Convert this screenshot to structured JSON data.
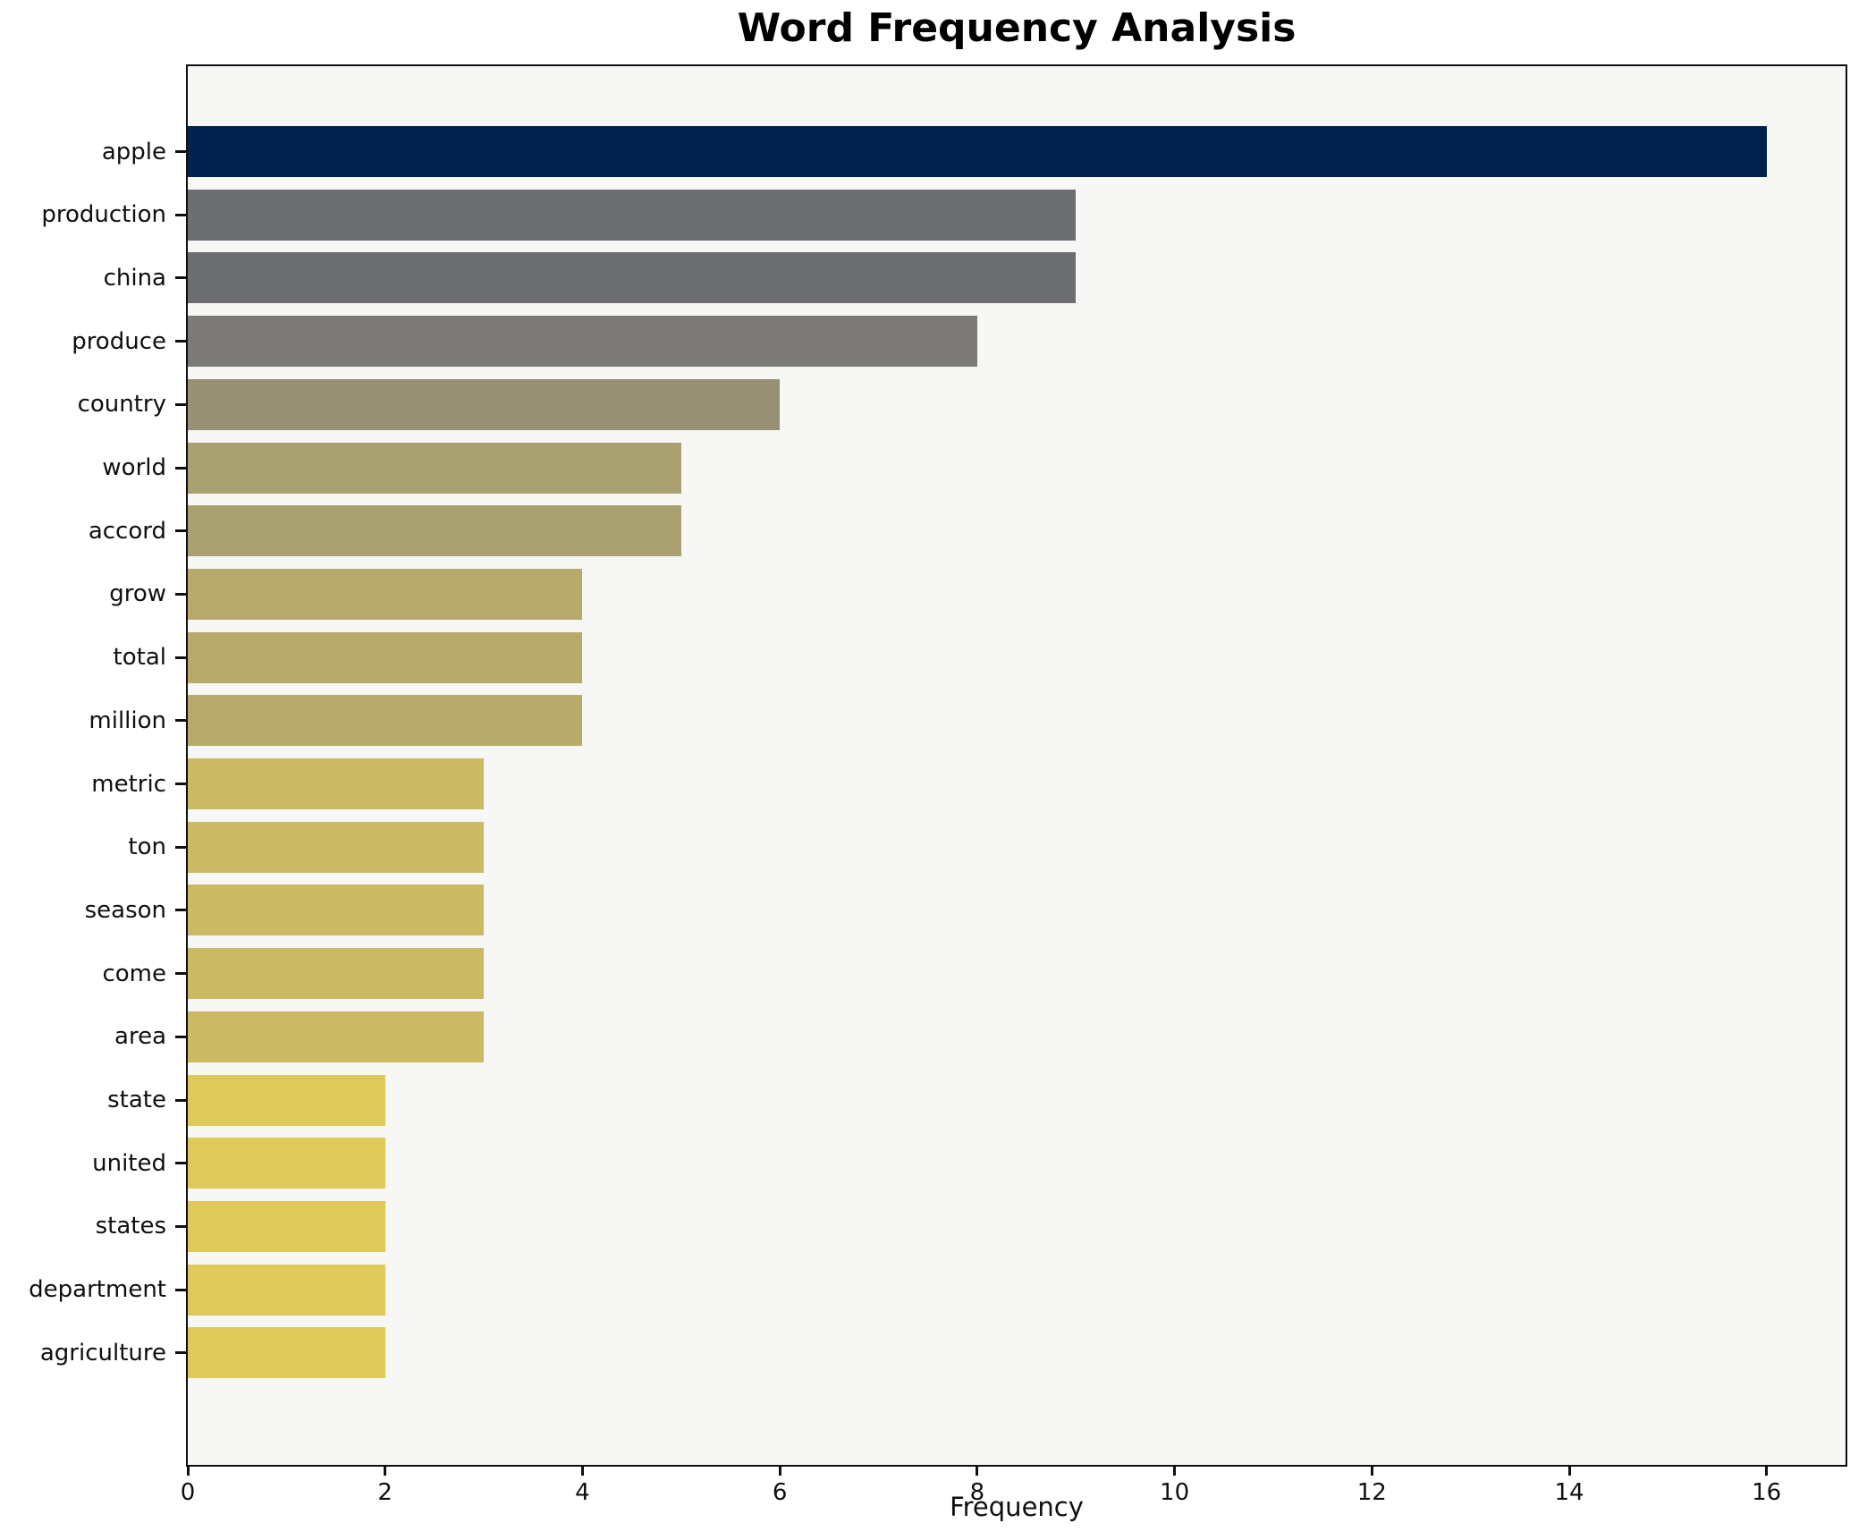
{
  "title": "Word Frequency Analysis",
  "chart_data": {
    "type": "bar",
    "orientation": "horizontal",
    "title": "Word Frequency Analysis",
    "xlabel": "Frequency",
    "ylabel": "",
    "categories": [
      "apple",
      "production",
      "china",
      "produce",
      "country",
      "world",
      "accord",
      "grow",
      "total",
      "million",
      "metric",
      "ton",
      "season",
      "come",
      "area",
      "state",
      "united",
      "states",
      "department",
      "agriculture"
    ],
    "values": [
      16,
      9,
      9,
      8,
      6,
      5,
      5,
      4,
      4,
      4,
      3,
      3,
      3,
      3,
      3,
      2,
      2,
      2,
      2,
      2
    ],
    "bar_colors": [
      "#02214d",
      "#6c6e72",
      "#6c6e72",
      "#7b7a76",
      "#989075",
      "#aaa172",
      "#aaa172",
      "#b8aa6b",
      "#b8aa6b",
      "#b8aa6b",
      "#cbb963",
      "#cbb963",
      "#cbb963",
      "#cbb963",
      "#cbb963",
      "#dfc95a",
      "#dfc95a",
      "#dfc95a",
      "#dfc95a",
      "#dfc95a"
    ],
    "xlim": [
      0,
      16.8
    ],
    "xticks": [
      0,
      2,
      4,
      6,
      8,
      10,
      12,
      14,
      16
    ],
    "grid": false,
    "legend": false,
    "plot_background": "#f7f7f5",
    "figure_background": "#ffffff",
    "spine_color": "#0f0f0f",
    "text_color": "#000000"
  }
}
